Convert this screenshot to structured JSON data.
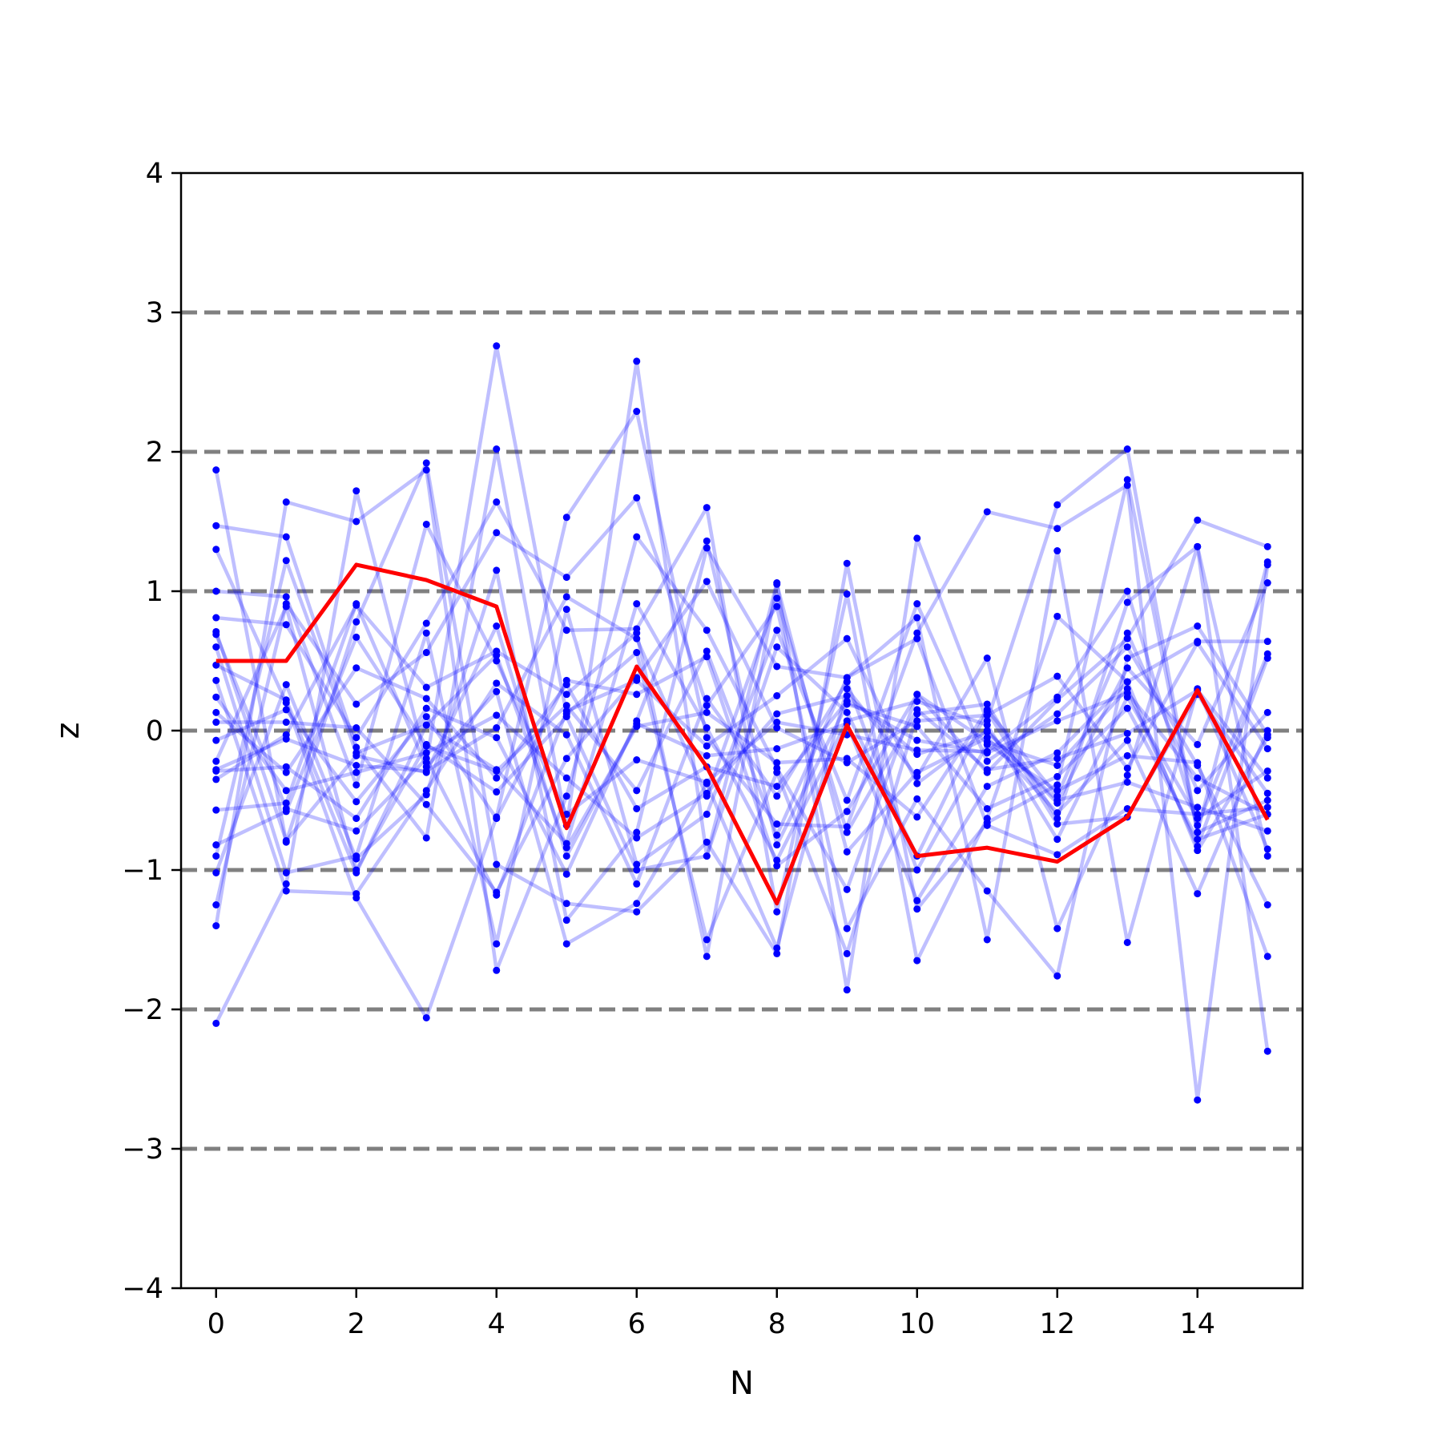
{
  "chart_data": {
    "type": "line",
    "title": "",
    "xlabel": "N",
    "ylabel": "z",
    "xlim": [
      -0.5,
      15.5
    ],
    "ylim": [
      -4,
      4
    ],
    "x": [
      0,
      1,
      2,
      3,
      4,
      5,
      6,
      7,
      8,
      9,
      10,
      11,
      12,
      13,
      14,
      15
    ],
    "x_ticks": [
      "0",
      "2",
      "4",
      "6",
      "8",
      "10",
      "12",
      "14"
    ],
    "y_ticks": [
      "−4",
      "−3",
      "−2",
      "−1",
      "0",
      "1",
      "2",
      "3",
      "4"
    ],
    "reference_lines": [
      -3,
      -2,
      -1,
      0,
      1,
      2,
      3
    ],
    "reference_line_color": "#808080",
    "walk_color": "#0000ff",
    "walk_opacity": 0.25,
    "mean_color": "#ff0000",
    "legend": "none",
    "grid": false,
    "series": [
      {
        "role": "mean",
        "values": [
          0.5,
          0.5,
          1.19,
          1.08,
          0.89,
          -0.7,
          0.46,
          -0.26,
          -1.24,
          0.04,
          -0.9,
          -0.84,
          -0.94,
          -0.62,
          0.29,
          -0.64
        ]
      },
      {
        "values": [
          1.87,
          -0.8,
          0.78,
          1.92,
          -0.96,
          -1.24,
          -1.3,
          -0.8,
          -1.6,
          1.2,
          -1.28,
          -0.66,
          -0.39,
          1.8,
          -0.73,
          -0.5
        ]
      },
      {
        "values": [
          -2.1,
          -1.1,
          1.72,
          -0.23,
          2.76,
          0.12,
          0.56,
          -1.5,
          -0.3,
          -1.6,
          0.12,
          0.19,
          -0.63,
          0.92,
          1.32,
          -0.9
        ]
      },
      {
        "values": [
          1.47,
          1.39,
          -0.12,
          -0.77,
          2.02,
          -0.68,
          2.65,
          -0.9,
          1.06,
          -1.86,
          1.38,
          0.07,
          1.62,
          2.02,
          -0.73,
          1.21
        ]
      },
      {
        "values": [
          1.3,
          0.2,
          -1.2,
          -2.06,
          -0.62,
          1.53,
          2.29,
          -0.05,
          -0.67,
          -0.69,
          0.7,
          1.57,
          1.45,
          1.76,
          -2.65,
          1.19
        ]
      },
      {
        "values": [
          0.81,
          0.76,
          -0.05,
          0.77,
          1.64,
          0.72,
          0.73,
          1.6,
          -1.3,
          0.98,
          -1.65,
          -0.63,
          0.82,
          0.35,
          0.64,
          0.64
        ]
      },
      {
        "values": [
          -1.4,
          1.64,
          1.5,
          1.87,
          -1.72,
          -0.47,
          1.39,
          0.72,
          -0.27,
          -1.14,
          0.26,
          -0.3,
          0.22,
          0.66,
          1.51,
          1.32
        ]
      },
      {
        "values": [
          -1.25,
          0.91,
          0.19,
          0.56,
          1.42,
          1.1,
          1.67,
          0.18,
          0.89,
          -1.42,
          -0.49,
          -1.15,
          -1.76,
          0.52,
          0.75,
          -0.03
        ]
      },
      {
        "values": [
          -1.02,
          0.33,
          -0.92,
          -0.46,
          1.15,
          -1.36,
          -0.73,
          1.31,
          0.46,
          0.38,
          0.81,
          -1.5,
          1.29,
          -1.52,
          0.3,
          -0.85
        ]
      },
      {
        "values": [
          -0.57,
          -0.52,
          0.91,
          -0.26,
          0.28,
          -1.53,
          -1.24,
          -0.38,
          -1.56,
          0.3,
          -0.33,
          0.52,
          -1.42,
          -0.32,
          1.32,
          -2.3
        ]
      },
      {
        "values": [
          0.06,
          0.06,
          0.02,
          -0.53,
          -1.16,
          -0.2,
          0.38,
          1.07,
          0.02,
          -0.23,
          0.07,
          0.11,
          0.39,
          -0.27,
          0.63,
          -0.13
        ]
      },
      {
        "values": [
          0.36,
          -1.15,
          -1.17,
          -0.43,
          0.34,
          -0.03,
          -1.1,
          0.23,
          -0.47,
          0.35,
          -1.0,
          -0.1,
          -0.43,
          -0.18,
          -0.23,
          -1.62
        ]
      },
      {
        "values": [
          0.69,
          -0.56,
          -0.72,
          -0.2,
          -1.18,
          0.14,
          0.36,
          -0.11,
          0.25,
          0.66,
          -0.38,
          0.0,
          -0.52,
          0.45,
          -0.1,
          1.06
        ]
      },
      {
        "values": [
          1.0,
          0.96,
          -0.39,
          1.48,
          0.5,
          -0.6,
          -0.21,
          -0.37,
          0.06,
          -0.03,
          -0.14,
          -0.15,
          0.24,
          1.0,
          -0.68,
          0.55
        ]
      },
      {
        "values": [
          -0.9,
          1.22,
          -0.16,
          0.04,
          -0.28,
          -0.81,
          0.91,
          0.02,
          -0.93,
          0.07,
          0.21,
          0.04,
          -0.78,
          0.24,
          -0.63,
          -0.29
        ]
      },
      {
        "values": [
          0.6,
          -1.02,
          -0.9,
          0.7,
          -1.53,
          0.87,
          -0.96,
          -0.6,
          0.72,
          -0.5,
          0.91,
          -0.22,
          0.12,
          0.6,
          -0.25,
          -1.25
        ]
      },
      {
        "values": [
          -0.35,
          -0.03,
          0.9,
          0.31,
          0.57,
          0.26,
          0.7,
          -1.62,
          1.05,
          -0.87,
          -0.3,
          -0.05,
          -0.59,
          -0.07,
          -1.17,
          0.0
        ]
      },
      {
        "values": [
          -0.29,
          -0.26,
          -0.63,
          0.16,
          -0.05,
          -1.03,
          0.07,
          1.36,
          -0.82,
          0.19,
          0.03,
          -0.56,
          -0.33,
          0.16,
          -0.78,
          -0.6
        ]
      },
      {
        "values": [
          -0.22,
          0.89,
          -1.0,
          -0.1,
          -0.44,
          0.1,
          -1.0,
          -0.9,
          0.6,
          0.13,
          -0.9,
          0.14,
          -0.67,
          -0.62,
          0.26,
          -0.45
        ]
      },
      {
        "values": [
          0.24,
          -0.43,
          -0.3,
          -0.16,
          0.11,
          -0.34,
          -0.77,
          -0.45,
          0.12,
          0.25,
          -0.17,
          -0.01,
          -0.5,
          -0.37,
          -0.55,
          -0.72
        ]
      },
      {
        "values": [
          -0.07,
          0.15,
          -0.51,
          0.1,
          -0.63,
          0.36,
          0.26,
          0.53,
          -0.97,
          -0.58,
          0.26,
          -0.08,
          -0.25,
          0.3,
          -0.83,
          0.52
        ]
      },
      {
        "values": [
          0.71,
          -0.79,
          -0.18,
          -0.3,
          0.75,
          -0.9,
          0.05,
          -0.18,
          -0.13,
          0.05,
          -1.22,
          -0.4,
          -0.16,
          0.35,
          -0.86,
          -0.05
        ]
      },
      {
        "values": [
          -0.82,
          -0.58,
          0.67,
          -0.11,
          -0.29,
          0.18,
          -0.43,
          0.57,
          -0.75,
          0.38,
          0.66,
          -0.68,
          -0.89,
          -0.56,
          -0.6,
          -0.55
        ]
      },
      {
        "values": [
          0.47,
          0.22,
          -1.02,
          0.04,
          0.54,
          -0.84,
          0.03,
          0.13,
          -0.23,
          -0.2,
          -0.62,
          0.15,
          -0.47,
          0.7,
          -0.43,
          0.13
        ]
      },
      {
        "values": [
          -0.28,
          -0.06,
          -0.25,
          -0.29,
          0.02,
          0.96,
          0.66,
          -0.47,
          0.95,
          -0.73,
          0.15,
          -0.28,
          -0.2,
          -0.02,
          0.29,
          -0.34
        ]
      },
      {
        "values": [
          0.13,
          -0.3,
          0.45,
          0.23,
          -0.34,
          0.33,
          -0.56,
          -0.26,
          -0.4,
          0.21,
          -0.07,
          -0.16,
          0.07,
          0.27,
          -0.34,
          -0.6
        ]
      }
    ]
  }
}
